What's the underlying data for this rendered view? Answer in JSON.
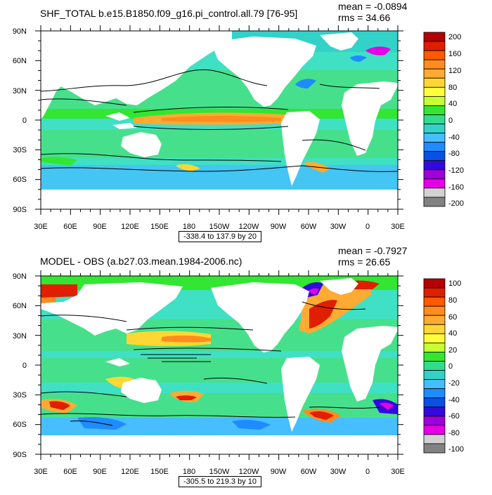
{
  "panels": [
    {
      "title": "SHF_TOTAL b.e15.B1850.f09_g16.pi_control.all.79 [76-95]",
      "mean_label": "mean = -0.0894",
      "rms_label": "rms = 34.66",
      "range_label": "-338.4 to 137.9 by 20",
      "lat_labels": [
        "90N",
        "60N",
        "30N",
        "0",
        "30S",
        "60S",
        "90S"
      ],
      "lon_labels": [
        "30E",
        "60E",
        "90E",
        "120E",
        "150E",
        "180",
        "150W",
        "120W",
        "90W",
        "60W",
        "30W",
        "0",
        "30E"
      ],
      "colorbar_labels": [
        "200",
        "160",
        "120",
        "80",
        "40",
        "0",
        "-40",
        "-80",
        "-120",
        "-160",
        "-200"
      ]
    },
    {
      "title": "MODEL - OBS (a.b27.03.mean.1984-2006.nc)",
      "mean_label": "mean = -0.7927",
      "rms_label": "rms = 26.65",
      "range_label": "-305.5 to 219.3 by 10",
      "lat_labels": [
        "90N",
        "60N",
        "30N",
        "0",
        "30S",
        "60S",
        "90S"
      ],
      "lon_labels": [
        "30E",
        "60E",
        "90E",
        "120E",
        "150E",
        "180",
        "150W",
        "120W",
        "90W",
        "60W",
        "30W",
        "0",
        "30E"
      ],
      "colorbar_labels": [
        "100",
        "80",
        "60",
        "40",
        "20",
        "0",
        "-20",
        "-40",
        "-60",
        "-80",
        "-100"
      ]
    }
  ],
  "colors": {
    "colorbar": [
      "#b40000",
      "#e01e00",
      "#ff5a00",
      "#ff8c1e",
      "#ffaa32",
      "#ffd732",
      "#ffff3c",
      "#c8ff32",
      "#32e632",
      "#32dc8c",
      "#32d2c8",
      "#46beff",
      "#1e8cff",
      "#0a50e6",
      "#320adc",
      "#a000dc",
      "#e600e6",
      "#d2d2d2",
      "#828282"
    ],
    "ocean": "#3fe0c4",
    "land": "#ffffff"
  }
}
